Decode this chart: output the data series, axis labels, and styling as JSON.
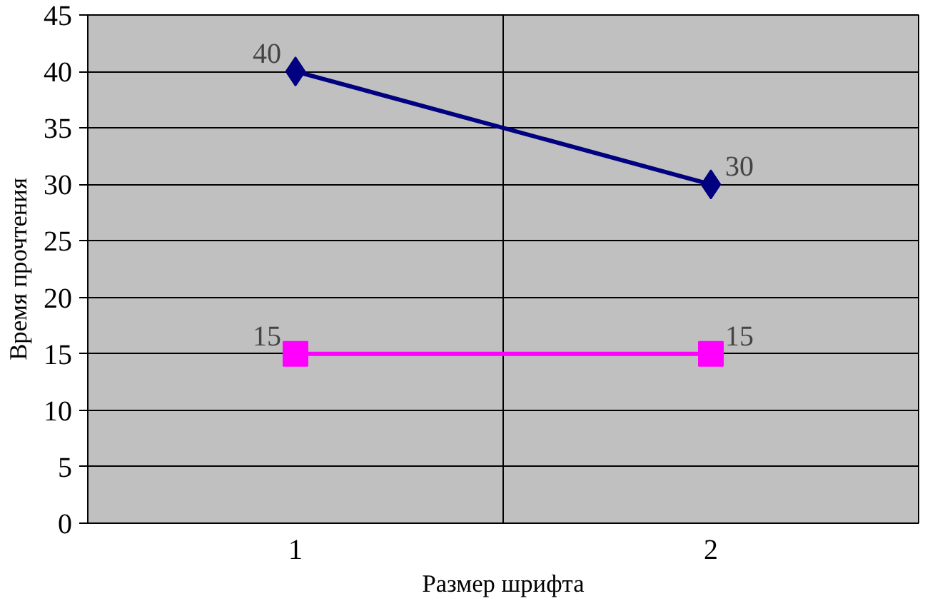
{
  "chart_data": {
    "type": "line",
    "xlabel": "Размер шрифта",
    "ylabel": "Время прочтения",
    "categories": [
      "1",
      "2"
    ],
    "series": [
      {
        "color": "#000080",
        "values": [
          40,
          30
        ],
        "marker": "diamond"
      },
      {
        "color": "#ff00ff",
        "values": [
          15,
          15
        ],
        "marker": "square"
      }
    ],
    "ylim": [
      0,
      45
    ],
    "yticks": [
      0,
      5,
      10,
      15,
      20,
      25,
      30,
      35,
      40,
      45
    ],
    "grid": true,
    "data_labels": true
  }
}
